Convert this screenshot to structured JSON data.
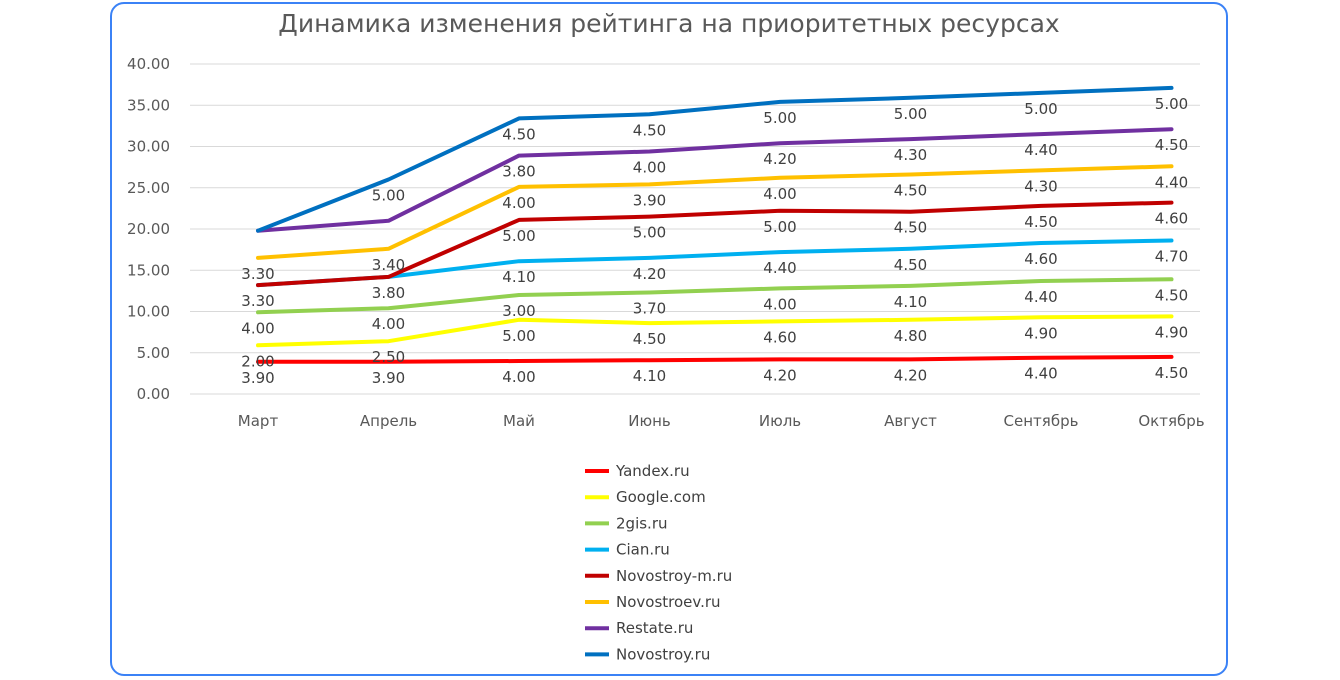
{
  "chart_data": {
    "type": "line",
    "stacked": true,
    "title": "Динамика изменения рейтинга на приоритетных ресурсах",
    "xlabel": "",
    "ylabel": "",
    "categories": [
      "Март",
      "Апрель",
      "Май",
      "Июнь",
      "Июль",
      "Август",
      "Сентябрь",
      "Октябрь"
    ],
    "ylim": [
      0,
      40
    ],
    "yticks": [
      "0.00",
      "5.00",
      "10.00",
      "15.00",
      "20.00",
      "25.00",
      "30.00",
      "35.00",
      "40.00"
    ],
    "grid": true,
    "legend_position": "bottom",
    "series": [
      {
        "name": "Yandex.ru",
        "color": "#ff0000",
        "values": [
          3.9,
          3.9,
          4.0,
          4.1,
          4.2,
          4.2,
          4.4,
          4.5
        ],
        "labels": [
          "3.90",
          "3.90",
          "4.00",
          "4.10",
          "4.20",
          "4.20",
          "4.40",
          "4.50"
        ]
      },
      {
        "name": "Google.com",
        "color": "#ffff00",
        "values": [
          2.0,
          2.5,
          5.0,
          4.5,
          4.6,
          4.8,
          4.9,
          4.9
        ],
        "labels": [
          "2.00",
          "2.50",
          "5.00",
          "4.50",
          "4.60",
          "4.80",
          "4.90",
          "4.90"
        ]
      },
      {
        "name": "2gis.ru",
        "color": "#92d050",
        "values": [
          4.0,
          4.0,
          3.0,
          3.7,
          4.0,
          4.1,
          4.4,
          4.5
        ],
        "labels": [
          "4.00",
          "4.00",
          "3.00",
          "3.70",
          "4.00",
          "4.10",
          "4.40",
          "4.50"
        ]
      },
      {
        "name": "Cian.ru",
        "color": "#00b0f0",
        "values": [
          3.3,
          3.8,
          4.1,
          4.2,
          4.4,
          4.5,
          4.6,
          4.7
        ],
        "labels": [
          "3.30",
          "3.80",
          "4.10",
          "4.20",
          "4.40",
          "4.50",
          "4.60",
          "4.70"
        ]
      },
      {
        "name": "Novostroy-m.ru",
        "color": "#c00000",
        "values": [
          0.0,
          0.0,
          5.0,
          5.0,
          5.0,
          4.5,
          4.5,
          4.6
        ],
        "labels": [
          "",
          "",
          "5.00",
          "5.00",
          "5.00",
          "4.50",
          "4.50",
          "4.60"
        ]
      },
      {
        "name": "Novostroev.ru",
        "color": "#ffc000",
        "values": [
          3.3,
          3.4,
          4.0,
          3.9,
          4.0,
          4.5,
          4.3,
          4.4
        ],
        "labels": [
          "3.30",
          "3.40",
          "4.00",
          "3.90",
          "4.00",
          "4.50",
          "4.30",
          "4.40"
        ]
      },
      {
        "name": "Restate.ru",
        "color": "#7030a0",
        "values": [
          3.3,
          3.4,
          3.8,
          4.0,
          4.2,
          4.3,
          4.4,
          4.5
        ],
        "labels": [
          "",
          "",
          "3.80",
          "4.00",
          "4.20",
          "4.30",
          "4.40",
          "4.50"
        ]
      },
      {
        "name": "Novostroy.ru",
        "color": "#0070c0",
        "values": [
          0.0,
          5.0,
          4.5,
          4.5,
          5.0,
          5.0,
          5.0,
          5.0
        ],
        "labels": [
          "",
          "5.00",
          "4.50",
          "4.50",
          "5.00",
          "5.00",
          "5.00",
          "5.00"
        ]
      }
    ]
  }
}
